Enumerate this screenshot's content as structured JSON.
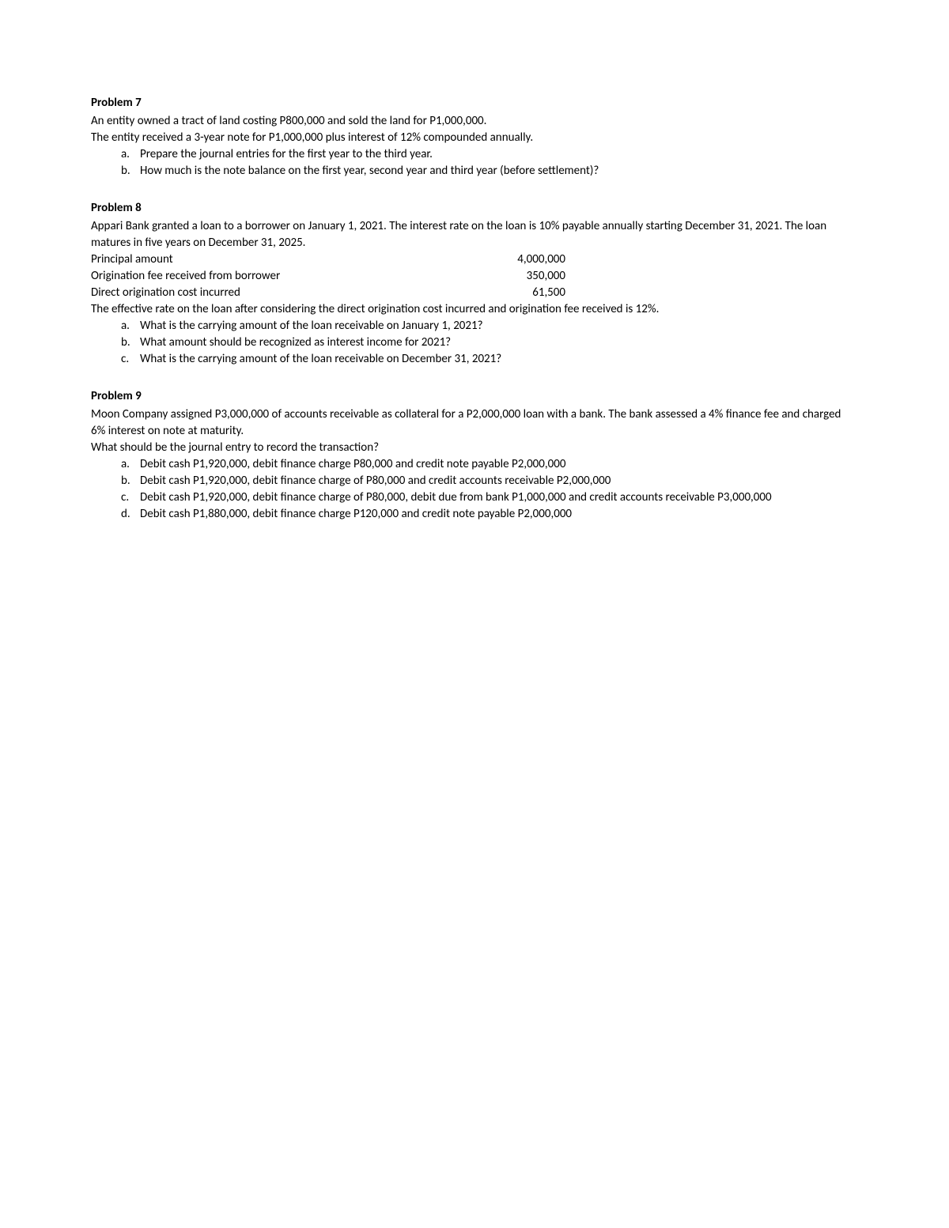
{
  "colors": {
    "background": "#ffffff",
    "text": "#000000"
  },
  "typography": {
    "font_family": "Calibri",
    "font_size_pt": 11,
    "title_weight": "bold"
  },
  "problems": [
    {
      "title": "Problem 7",
      "para1": "An entity owned a tract of land costing P800,000 and sold the land for P1,000,000.",
      "para2": "The entity received a 3-year note for P1,000,000 plus interest of 12% compounded annually.",
      "items": [
        {
          "marker": "a.",
          "text": "Prepare the journal entries for the first year to the third year."
        },
        {
          "marker": "b.",
          "text": "How much is the note balance on the first year, second year and third year (before settlement)?"
        }
      ]
    },
    {
      "title": "Problem 8",
      "para1": "Appari Bank granted a loan to a borrower on January 1, 2021. The interest rate on the loan is 10% payable annually starting December 31, 2021. The loan matures in five years on December 31, 2025.",
      "rows": [
        {
          "label": "Principal amount",
          "value": "4,000,000"
        },
        {
          "label": "Origination fee received from borrower",
          "value": "350,000"
        },
        {
          "label": "Direct origination cost incurred",
          "value": "61,500"
        }
      ],
      "para2": "The effective rate on the loan after considering the direct origination cost incurred and origination fee received is 12%.",
      "items": [
        {
          "marker": "a.",
          "text": "What is the carrying amount of the loan receivable on January 1, 2021?"
        },
        {
          "marker": "b.",
          "text": "What amount should be recognized as interest income for 2021?"
        },
        {
          "marker": "c.",
          "text": "What is the carrying amount of the loan receivable on December 31, 2021?"
        }
      ]
    },
    {
      "title": "Problem 9",
      "para1": "Moon Company assigned P3,000,000 of accounts receivable as collateral for a P2,000,000 loan with a bank. The bank assessed a 4% finance fee and charged 6% interest on note at maturity.",
      "para2": "What should be the journal entry to record the transaction?",
      "items": [
        {
          "marker": "a.",
          "text": "Debit cash P1,920,000, debit finance charge P80,000 and credit note payable P2,000,000"
        },
        {
          "marker": "b.",
          "text": "Debit cash P1,920,000, debit finance charge of P80,000 and credit accounts receivable P2,000,000"
        },
        {
          "marker": "c.",
          "text": "Debit cash P1,920,000, debit finance charge of P80,000, debit due from bank P1,000,000 and credit accounts receivable P3,000,000"
        },
        {
          "marker": "d.",
          "text": "Debit cash P1,880,000, debit finance charge P120,000 and credit note payable P2,000,000"
        }
      ]
    }
  ]
}
